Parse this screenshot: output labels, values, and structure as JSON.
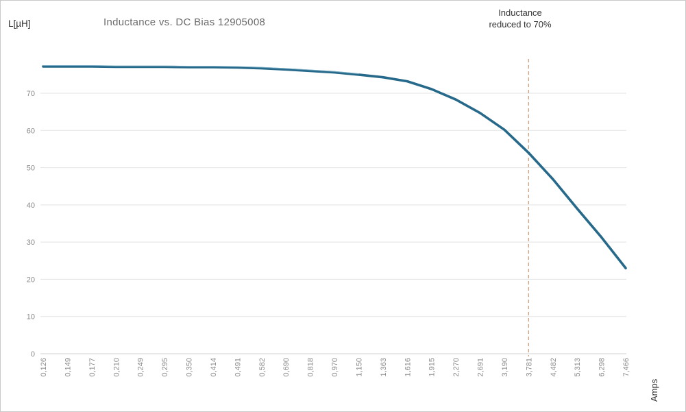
{
  "header": {
    "y_axis_unit": "L[µH]",
    "title": "Inductance vs. DC Bias 12905008",
    "annotation_line1": "Inductance",
    "annotation_line2": "reduced to 70%",
    "x_axis_unit": "Amps"
  },
  "chart_data": {
    "type": "line",
    "title": "Inductance vs. DC Bias 12905008",
    "xlabel": "Amps",
    "ylabel": "L[µH]",
    "categories": [
      "0,126",
      "0,149",
      "0,177",
      "0,210",
      "0,249",
      "0,295",
      "0,350",
      "0,414",
      "0,491",
      "0,582",
      "0,690",
      "0,818",
      "0,970",
      "1,150",
      "1,363",
      "1,616",
      "1,915",
      "2,270",
      "2,691",
      "3,190",
      "3,781",
      "4,482",
      "5,313",
      "6,298",
      "7,466"
    ],
    "series": [
      {
        "name": "Inductance",
        "values": [
          77.2,
          77.2,
          77.2,
          77.1,
          77.1,
          77.1,
          77.0,
          77.0,
          76.9,
          76.7,
          76.4,
          76.0,
          75.6,
          75.0,
          74.3,
          73.2,
          71.1,
          68.3,
          64.7,
          60.2,
          54.0,
          46.9,
          39.0,
          31.3,
          23.0
        ]
      }
    ],
    "yticks": [
      0,
      10,
      20,
      30,
      40,
      50,
      60,
      70
    ],
    "ylim": [
      0,
      80
    ],
    "grid": true,
    "legend_position": "none",
    "reference_line": {
      "category": "3,781",
      "label": "Inductance reduced to 70%",
      "style": "dashed"
    }
  },
  "colors": {
    "line": "#26698a",
    "line_highlight": "#9fcbdd",
    "reference_dash": "#cda585",
    "gridline": "#e3e3e3",
    "axis_line": "#d2d2d2",
    "tick_text": "#8a8a8a",
    "title_text": "#6b6b6b",
    "dark_text": "#333333"
  }
}
